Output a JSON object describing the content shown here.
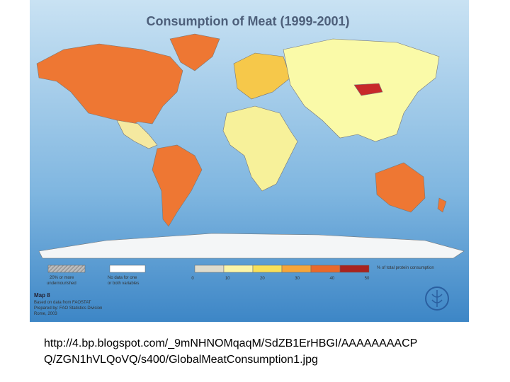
{
  "map": {
    "title": "Consumption of Meat  (1999-2001)",
    "legend": {
      "undernourished": [
        "20% or more",
        "undernourished"
      ],
      "no_data": [
        "No data for one",
        "or both variables"
      ],
      "scale": [
        0,
        10,
        20,
        30,
        40,
        50
      ],
      "scale_label": "% of total protein consumption"
    },
    "notes": [
      "Map 8",
      "Based on data from FAOSTAT",
      "Prepared by: FAO Statistics Division",
      "Rome, 2003"
    ]
  },
  "caption": [
    "http://4.bp.blogspot.com/_9mNHNOMqaqM/SdZB1ErHBGI/AAAAAAAACP",
    "Q/ZGN1hVLQoVQ/s400/GlobalMeatConsumption1.jpg"
  ]
}
